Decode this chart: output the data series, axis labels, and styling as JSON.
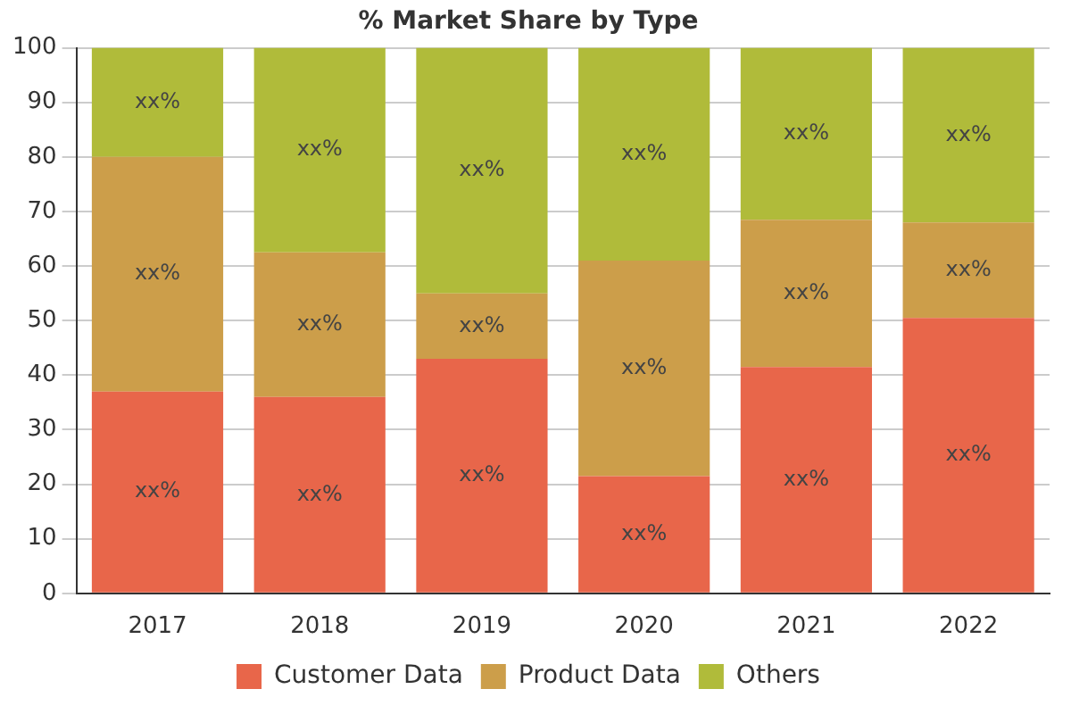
{
  "chart_data": {
    "type": "bar",
    "title": "% Market Share by Type",
    "categories": [
      "2017",
      "2018",
      "2019",
      "2020",
      "2021",
      "2022"
    ],
    "stacked": true,
    "series": [
      {
        "name": "Customer Data",
        "color": "#e8664a",
        "values": [
          37,
          36,
          43,
          21.5,
          41.5,
          50.5
        ],
        "value_labels": [
          "xx%",
          "xx%",
          "xx%",
          "xx%",
          "xx%",
          "xx%"
        ]
      },
      {
        "name": "Product Data",
        "color": "#cc9e4a",
        "values": [
          43,
          26.5,
          12,
          39.5,
          27,
          17.5
        ],
        "value_labels": [
          "xx%",
          "xx%",
          "xx%",
          "xx%",
          "xx%",
          "xx%"
        ]
      },
      {
        "name": "Others",
        "color": "#b0bb3a",
        "values": [
          20,
          37.5,
          45,
          39,
          31.5,
          32
        ],
        "value_labels": [
          "xx%",
          "xx%",
          "xx%",
          "xx%",
          "xx%",
          "xx%"
        ]
      }
    ],
    "ylim": [
      0,
      100
    ],
    "yticks": [
      0,
      10,
      20,
      30,
      40,
      50,
      60,
      70,
      80,
      90,
      100
    ],
    "grid": "y",
    "legend": "bottom"
  }
}
